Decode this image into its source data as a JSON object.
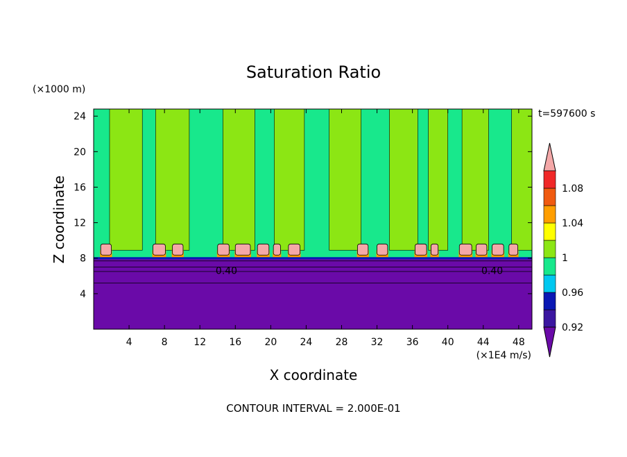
{
  "chart_data": {
    "type": "heatmap",
    "title": "Saturation Ratio",
    "xlabel": "X coordinate",
    "ylabel": "Z coordinate",
    "x_unit": "(×1E4 m/s)",
    "y_unit": "(×1000 m)",
    "time_label": "t=597600 s",
    "footer": "CONTOUR INTERVAL = 2.000E-01",
    "xlim": [
      0,
      49.5
    ],
    "ylim": [
      0,
      24.8
    ],
    "x_ticks": [
      4,
      8,
      12,
      16,
      20,
      24,
      28,
      32,
      36,
      40,
      44,
      48
    ],
    "y_ticks": [
      4,
      8,
      12,
      16,
      20,
      24
    ],
    "colorbar": {
      "levels": [
        0.92,
        0.96,
        1,
        1.04,
        1.08
      ],
      "bands": [
        {
          "min": null,
          "max": 0.92,
          "color": "#6a0aa8"
        },
        {
          "min": 0.92,
          "max": 0.94,
          "color": "#3b16a0"
        },
        {
          "min": 0.94,
          "max": 0.96,
          "color": "#0a18b4"
        },
        {
          "min": 0.96,
          "max": 0.98,
          "color": "#00c8f0"
        },
        {
          "min": 0.98,
          "max": 1.0,
          "color": "#18e88c"
        },
        {
          "min": 1.0,
          "max": 1.02,
          "color": "#8ce614"
        },
        {
          "min": 1.02,
          "max": 1.04,
          "color": "#ffff00"
        },
        {
          "min": 1.04,
          "max": 1.06,
          "color": "#ff9e00"
        },
        {
          "min": 1.06,
          "max": 1.08,
          "color": "#f05a10"
        },
        {
          "min": 1.08,
          "max": 1.1,
          "color": "#f02828"
        },
        {
          "min": 1.1,
          "max": null,
          "color": "#f4a8a8"
        }
      ]
    },
    "regions": {
      "lower_layer": {
        "z_top": 8,
        "value": "< 0.92"
      },
      "upper_layer": {
        "z_range": [
          8,
          24.8
        ],
        "values": "alternating 0.98–1.00 and 1.00–1.02 vertical columns"
      },
      "cloud_tops": {
        "z_range": [
          8,
          9.6
        ],
        "value": "> 1.10"
      }
    },
    "column_bands_x": [
      [
        1.8,
        5.5
      ],
      [
        7.0,
        10.8
      ],
      [
        14.6,
        18.2
      ],
      [
        20.4,
        23.8
      ],
      [
        26.6,
        30.2
      ],
      [
        33.4,
        36.6
      ],
      [
        37.8,
        40.0
      ],
      [
        41.6,
        44.6
      ],
      [
        47.2,
        49.5
      ]
    ],
    "cloud_cells_x": [
      [
        0.8,
        2.0
      ],
      [
        6.7,
        8.1
      ],
      [
        8.9,
        10.1
      ],
      [
        14.0,
        15.3
      ],
      [
        16.0,
        17.7
      ],
      [
        18.5,
        19.8
      ],
      [
        20.3,
        21.1
      ],
      [
        22.0,
        23.3
      ],
      [
        29.8,
        31.0
      ],
      [
        32.0,
        33.2
      ],
      [
        36.3,
        37.6
      ],
      [
        38.1,
        38.9
      ],
      [
        41.3,
        42.7
      ],
      [
        43.2,
        44.4
      ],
      [
        45.0,
        46.3
      ],
      [
        46.9,
        47.9
      ]
    ],
    "contour_labels": [
      {
        "text": "0.40",
        "x": 15.0,
        "y": 6.6
      },
      {
        "text": "0.40",
        "x": 45.0,
        "y": 6.6
      }
    ]
  }
}
